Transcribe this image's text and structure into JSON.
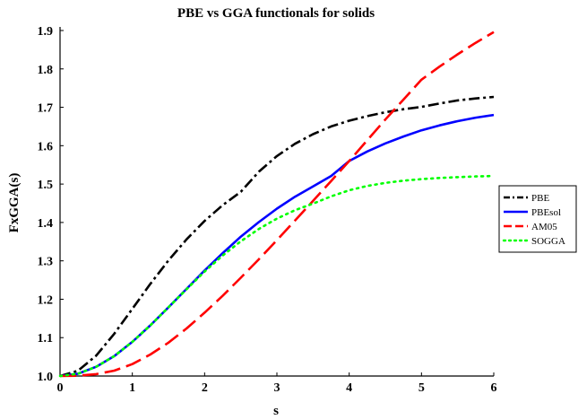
{
  "chart_data": {
    "type": "line",
    "title": "PBE vs GGA functionals for solids",
    "xlabel": "s",
    "ylabel": "FxGGA(s)",
    "xlim": [
      0,
      6
    ],
    "ylim": [
      1.0,
      1.9
    ],
    "xticks": [
      "0",
      "1",
      "2",
      "3",
      "4",
      "5",
      "6"
    ],
    "yticks": [
      "1.0",
      "1.1",
      "1.2",
      "1.3",
      "1.4",
      "1.5",
      "1.6",
      "1.7",
      "1.8",
      "1.9"
    ],
    "grid": false,
    "legend_position": "right",
    "x": [
      0,
      0.25,
      0.5,
      0.75,
      1.0,
      1.25,
      1.5,
      1.75,
      2.0,
      2.25,
      2.5,
      2.75,
      3.0,
      3.25,
      3.5,
      3.75,
      4.0,
      4.25,
      4.5,
      4.75,
      5.0,
      5.25,
      5.5,
      5.75,
      6.0
    ],
    "series": [
      {
        "name": "PBE",
        "color": "#000000",
        "dash": "dashdot",
        "values": [
          1.0,
          1.014,
          1.053,
          1.11,
          1.175,
          1.24,
          1.301,
          1.356,
          1.404,
          1.445,
          1.48,
          1.532,
          1.573,
          1.605,
          1.63,
          1.65,
          1.665,
          1.677,
          1.687,
          1.695,
          1.701,
          1.71,
          1.718,
          1.723,
          1.727
        ]
      },
      {
        "name": "PBEsol",
        "color": "#0000ff",
        "dash": "solid",
        "values": [
          1.0,
          1.006,
          1.024,
          1.052,
          1.089,
          1.132,
          1.179,
          1.227,
          1.275,
          1.32,
          1.363,
          1.401,
          1.436,
          1.467,
          1.494,
          1.521,
          1.56,
          1.585,
          1.606,
          1.624,
          1.64,
          1.653,
          1.664,
          1.673,
          1.68
        ]
      },
      {
        "name": "AM05",
        "color": "#ff0000",
        "dash": "longdash",
        "values": [
          1.0,
          1.001,
          1.005,
          1.014,
          1.031,
          1.056,
          1.087,
          1.124,
          1.165,
          1.209,
          1.256,
          1.304,
          1.354,
          1.405,
          1.456,
          1.508,
          1.56,
          1.614,
          1.668,
          1.72,
          1.772,
          1.806,
          1.838,
          1.868,
          1.896
        ]
      },
      {
        "name": "SOGGA",
        "color": "#00ff00",
        "dash": "dot",
        "values": [
          1.0,
          1.006,
          1.024,
          1.052,
          1.089,
          1.132,
          1.179,
          1.226,
          1.272,
          1.314,
          1.351,
          1.383,
          1.41,
          1.432,
          1.449,
          1.468,
          1.484,
          1.495,
          1.503,
          1.509,
          1.513,
          1.516,
          1.518,
          1.52,
          1.521
        ]
      }
    ]
  }
}
